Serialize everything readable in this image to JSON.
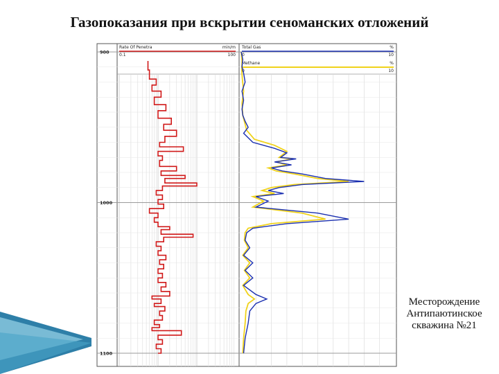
{
  "slide": {
    "title": "Газопоказания при вскрытии сеноманских отложений",
    "caption_line1": "Месторождение",
    "caption_line2": "Антипаютинское",
    "caption_line3": "скважина №21"
  },
  "colors": {
    "rop": "#d01818",
    "total_gas": "#1a2fb0",
    "methane": "#f0d21a",
    "grid": "#d8d8d8",
    "deco_blue": "#4aa3c8"
  },
  "chart_data": {
    "type": "line",
    "title": "",
    "y_axis": {
      "label": "",
      "ylim": [
        900,
        1100
      ],
      "ticks": [
        900,
        1000,
        1100
      ],
      "tick_labels": [
        "900",
        "1000",
        "1100"
      ]
    },
    "tracks": [
      {
        "name": "Rate Of Penetra",
        "unit": "min/m",
        "scale_min_label": "0.1",
        "scale_max_label": "100",
        "scale": "log",
        "xlim": [
          0.1,
          100
        ]
      },
      {
        "headers": [
          {
            "name": "Total Gas",
            "unit": "%",
            "min_label": "0",
            "max_label": "10"
          },
          {
            "name": "Methane",
            "unit": "%",
            "min_label": "0",
            "max_label": "10"
          }
        ],
        "xlim": [
          0,
          10
        ]
      }
    ],
    "series": [
      {
        "name": "Rate Of Penetra",
        "track": 0,
        "points": [
          [
            0.55,
            906
          ],
          [
            0.6,
            912
          ],
          [
            0.9,
            918
          ],
          [
            0.7,
            922
          ],
          [
            1.2,
            926
          ],
          [
            0.8,
            930
          ],
          [
            1.6,
            935
          ],
          [
            1.0,
            939
          ],
          [
            2.2,
            944
          ],
          [
            1.4,
            948
          ],
          [
            3.0,
            952
          ],
          [
            1.5,
            956
          ],
          [
            1.1,
            960
          ],
          [
            4.5,
            963
          ],
          [
            1.0,
            966
          ],
          [
            1.3,
            969
          ],
          [
            1.1,
            972
          ],
          [
            3.0,
            976
          ],
          [
            1.2,
            979
          ],
          [
            5.0,
            982
          ],
          [
            1.5,
            984
          ],
          [
            10.0,
            987
          ],
          [
            1.3,
            989
          ],
          [
            0.9,
            992
          ],
          [
            1.3,
            995
          ],
          [
            1.0,
            998
          ],
          [
            1.4,
            1001
          ],
          [
            0.6,
            1004
          ],
          [
            1.0,
            1007
          ],
          [
            0.8,
            1010
          ],
          [
            1.0,
            1013
          ],
          [
            2.0,
            1016
          ],
          [
            1.2,
            1018
          ],
          [
            8.0,
            1021
          ],
          [
            1.4,
            1023
          ],
          [
            0.9,
            1026
          ],
          [
            1.2,
            1029
          ],
          [
            1.0,
            1032
          ],
          [
            1.6,
            1035
          ],
          [
            1.1,
            1038
          ],
          [
            1.4,
            1041
          ],
          [
            1.0,
            1044
          ],
          [
            1.3,
            1047
          ],
          [
            1.0,
            1050
          ],
          [
            1.6,
            1053
          ],
          [
            1.2,
            1056
          ],
          [
            2.0,
            1059
          ],
          [
            0.7,
            1062
          ],
          [
            1.2,
            1064
          ],
          [
            0.8,
            1067
          ],
          [
            1.5,
            1069
          ],
          [
            1.1,
            1072
          ],
          [
            1.3,
            1075
          ],
          [
            0.8,
            1078
          ],
          [
            1.1,
            1081
          ],
          [
            0.7,
            1083
          ],
          [
            4.0,
            1085
          ],
          [
            1.0,
            1088
          ],
          [
            1.3,
            1091
          ],
          [
            0.9,
            1094
          ],
          [
            1.2,
            1097
          ],
          [
            1.0,
            1100
          ]
        ]
      },
      {
        "name": "Total Gas",
        "track": 1,
        "points": [
          [
            0.05,
            900
          ],
          [
            0.15,
            905
          ],
          [
            0.1,
            910
          ],
          [
            0.2,
            914
          ],
          [
            0.3,
            920
          ],
          [
            0.1,
            926
          ],
          [
            0.2,
            932
          ],
          [
            0.1,
            938
          ],
          [
            0.15,
            942
          ],
          [
            0.3,
            946
          ],
          [
            0.5,
            950
          ],
          [
            0.2,
            954
          ],
          [
            0.8,
            960
          ],
          [
            2.2,
            964
          ],
          [
            3.0,
            967
          ],
          [
            2.6,
            970
          ],
          [
            3.6,
            971
          ],
          [
            2.2,
            973
          ],
          [
            3.3,
            975
          ],
          [
            2.0,
            977
          ],
          [
            2.7,
            979
          ],
          [
            4.0,
            981
          ],
          [
            5.5,
            984
          ],
          [
            8.0,
            986
          ],
          [
            4.0,
            988
          ],
          [
            2.5,
            990
          ],
          [
            1.8,
            992
          ],
          [
            2.8,
            994
          ],
          [
            1.0,
            996
          ],
          [
            1.8,
            999
          ],
          [
            1.0,
            1003
          ],
          [
            5.0,
            1007
          ],
          [
            7.0,
            1011
          ],
          [
            3.0,
            1014
          ],
          [
            0.8,
            1017
          ],
          [
            0.4,
            1020
          ],
          [
            0.3,
            1025
          ],
          [
            0.6,
            1030
          ],
          [
            0.2,
            1035
          ],
          [
            0.8,
            1040
          ],
          [
            0.3,
            1045
          ],
          [
            0.8,
            1050
          ],
          [
            0.2,
            1055
          ],
          [
            1.0,
            1061
          ],
          [
            1.7,
            1064
          ],
          [
            1.0,
            1067
          ],
          [
            0.6,
            1072
          ],
          [
            0.5,
            1080
          ],
          [
            0.3,
            1090
          ],
          [
            0.2,
            1100
          ]
        ]
      },
      {
        "name": "Methane",
        "track": 1,
        "points": [
          [
            0.05,
            900
          ],
          [
            0.1,
            906
          ],
          [
            0.08,
            912
          ],
          [
            0.12,
            918
          ],
          [
            0.2,
            926
          ],
          [
            0.1,
            934
          ],
          [
            0.15,
            942
          ],
          [
            0.3,
            948
          ],
          [
            0.4,
            952
          ],
          [
            0.9,
            958
          ],
          [
            2.2,
            962
          ],
          [
            3.0,
            966
          ],
          [
            2.5,
            970
          ],
          [
            3.4,
            971
          ],
          [
            2.3,
            973
          ],
          [
            3.0,
            975
          ],
          [
            1.8,
            977
          ],
          [
            2.3,
            979
          ],
          [
            3.5,
            981
          ],
          [
            5.0,
            984
          ],
          [
            7.0,
            986
          ],
          [
            3.5,
            988
          ],
          [
            2.0,
            990
          ],
          [
            1.4,
            992
          ],
          [
            2.2,
            994
          ],
          [
            0.8,
            996
          ],
          [
            1.5,
            999
          ],
          [
            0.8,
            1003
          ],
          [
            4.0,
            1007
          ],
          [
            5.5,
            1011
          ],
          [
            2.0,
            1014
          ],
          [
            0.5,
            1017
          ],
          [
            0.3,
            1020
          ],
          [
            0.25,
            1025
          ],
          [
            0.5,
            1030
          ],
          [
            0.15,
            1035
          ],
          [
            0.6,
            1040
          ],
          [
            0.25,
            1045
          ],
          [
            0.6,
            1050
          ],
          [
            0.15,
            1055
          ],
          [
            0.5,
            1061
          ],
          [
            0.9,
            1064
          ],
          [
            0.5,
            1067
          ],
          [
            0.35,
            1072
          ],
          [
            0.3,
            1080
          ],
          [
            0.2,
            1090
          ],
          [
            0.15,
            1100
          ]
        ]
      }
    ]
  }
}
